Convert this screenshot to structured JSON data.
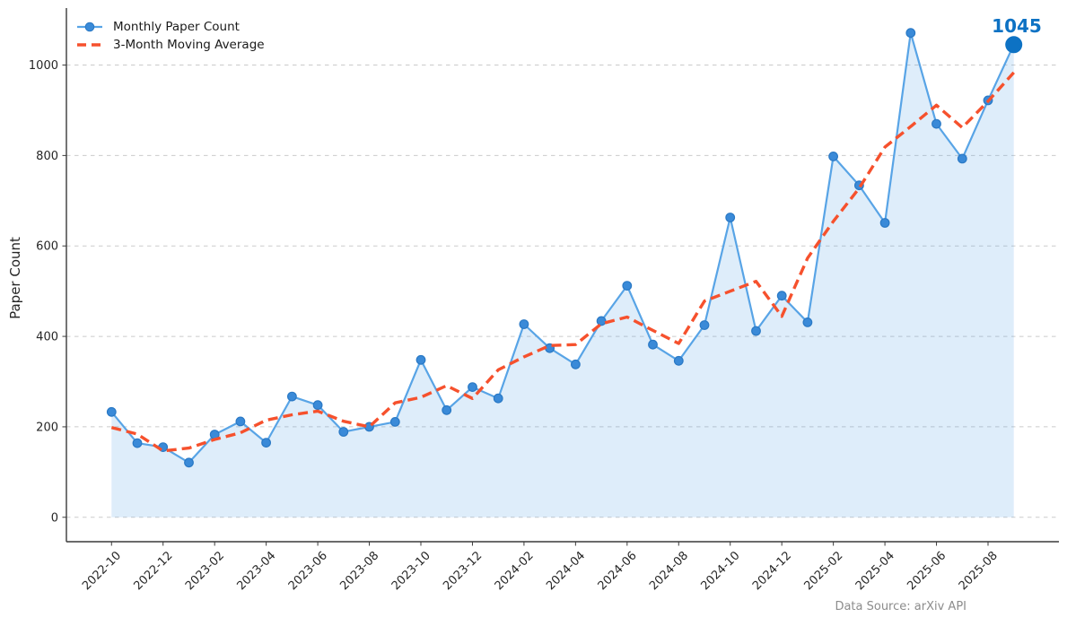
{
  "figure": {
    "background": "#ffffff"
  },
  "chart_data": {
    "type": "line",
    "ylabel": "Paper Count",
    "x": [
      "2022-10",
      "2022-11",
      "2022-12",
      "2023-01",
      "2023-02",
      "2023-03",
      "2023-04",
      "2023-05",
      "2023-06",
      "2023-07",
      "2023-08",
      "2023-09",
      "2023-10",
      "2023-11",
      "2023-12",
      "2024-01",
      "2024-02",
      "2024-03",
      "2024-04",
      "2024-05",
      "2024-06",
      "2024-07",
      "2024-08",
      "2024-09",
      "2024-10",
      "2024-11",
      "2024-12",
      "2025-01",
      "2025-02",
      "2025-03",
      "2025-04",
      "2025-05",
      "2025-06",
      "2025-07",
      "2025-08",
      "2025-09"
    ],
    "series": [
      {
        "name": "Monthly Paper Count",
        "style": "solid-with-markers",
        "color": "#58a4e6",
        "marker_fill": "#3a8ad8",
        "marker_edge": "#2a79c5",
        "fill_to_zero": true,
        "fill_color": "rgba(88,164,230,0.2)",
        "values": [
          233,
          164,
          155,
          121,
          183,
          212,
          165,
          267,
          248,
          189,
          200,
          211,
          348,
          237,
          288,
          263,
          427,
          374,
          338,
          434,
          512,
          382,
          346,
          425,
          663,
          412,
          490,
          431,
          798,
          734,
          651,
          1071,
          870,
          793,
          922,
          1045
        ]
      },
      {
        "name": "3-Month Moving Average",
        "style": "dashed",
        "color": "#f6512d",
        "values": [
          198.5,
          184.0,
          146.7,
          153.0,
          172.0,
          186.7,
          214.7,
          226.7,
          234.7,
          212.3,
          200.0,
          253.0,
          265.3,
          291.0,
          262.7,
          326.0,
          354.7,
          379.7,
          382.0,
          428.0,
          442.7,
          413.3,
          384.3,
          478.0,
          500.0,
          521.7,
          444.3,
          573.0,
          654.3,
          727.7,
          818.7,
          864.0,
          911.3,
          861.7,
          920.0,
          983.5
        ]
      }
    ],
    "xticks": [
      "2022-10",
      "2022-12",
      "2023-02",
      "2023-04",
      "2023-06",
      "2023-08",
      "2023-10",
      "2023-12",
      "2024-02",
      "2024-04",
      "2024-06",
      "2024-08",
      "2024-10",
      "2024-12",
      "2025-02",
      "2025-04",
      "2025-06",
      "2025-08"
    ],
    "yticks": [
      0,
      200,
      400,
      600,
      800,
      1000
    ],
    "ylim": [
      -54,
      1126
    ],
    "xlim": [
      -1.75,
      36.75
    ],
    "grid": "horizontal-dashed",
    "grid_color": "#cbcbcb",
    "spine_color": "#3a3a3a",
    "legend_position": "upper-left"
  },
  "annotation": {
    "label": "1045",
    "color": "#0d72c4",
    "month": "2025-09"
  },
  "footer": {
    "note": "Data Source: arXiv API"
  }
}
